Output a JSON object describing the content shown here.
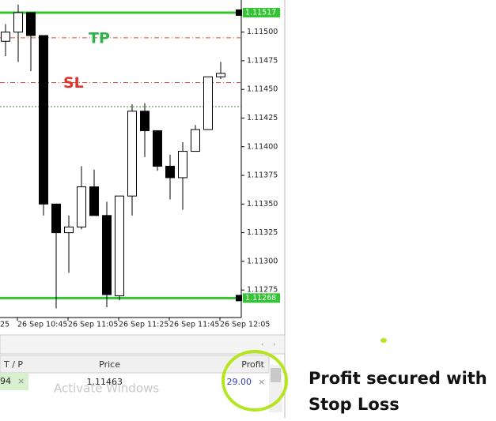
{
  "chart_data": {
    "type": "candlestick",
    "categories": [
      null,
      "26 Sep 10:45",
      null,
      null,
      null,
      "26 Sep 11:05",
      null,
      null,
      null,
      "26 Sep 11:25",
      null,
      null,
      null,
      "26 Sep 11:45",
      null,
      null,
      null,
      "26 Sep 12:05"
    ],
    "clipped_x_label": "25",
    "open": [
      1.11492,
      1.115,
      1.11517,
      1.11497,
      1.1135,
      1.11325,
      1.1133,
      1.11365,
      1.1134,
      1.1127,
      1.11357,
      1.11431,
      1.11414,
      1.11383,
      1.11373,
      1.11396,
      1.11415,
      1.11461
    ],
    "high": [
      1.11507,
      1.11524,
      1.11517,
      1.11497,
      1.1135,
      1.1134,
      1.11383,
      1.1138,
      1.11352,
      1.11357,
      1.11437,
      1.11438,
      1.11414,
      1.11393,
      1.11404,
      1.11419,
      1.11461,
      1.11474
    ],
    "low": [
      1.11479,
      1.11474,
      1.11466,
      1.1134,
      1.11259,
      1.1129,
      1.11328,
      1.1134,
      1.1126,
      1.11266,
      1.1134,
      1.11391,
      1.11379,
      1.11354,
      1.11345,
      1.11396,
      1.11415,
      1.11459
    ],
    "close": [
      1.115,
      1.11517,
      1.11497,
      1.1135,
      1.11325,
      1.1133,
      1.11365,
      1.1134,
      1.11271,
      1.11357,
      1.11431,
      1.11414,
      1.11383,
      1.11373,
      1.11396,
      1.11415,
      1.11461,
      1.11464
    ],
    "ylim": [
      1.11251,
      1.11528
    ],
    "yticks": [
      {
        "value": 1.115,
        "label": "1.11500"
      },
      1.11475,
      {
        "value": 1.1145,
        "label": "1.11450"
      },
      1.11425,
      {
        "value": 1.114,
        "label": "1.11400"
      },
      1.11375,
      {
        "value": 1.1135,
        "label": "1.11350"
      },
      1.11325,
      {
        "value": 1.113,
        "label": "1.11300"
      },
      1.11275
    ],
    "levels": [
      {
        "value": 1.11517,
        "color": "#33c433",
        "style": "solid",
        "price_box": true
      },
      {
        "value": 1.11268,
        "color": "#33c433",
        "style": "solid",
        "price_box": true
      },
      {
        "name": "TP",
        "value": 1.11495,
        "color": "#d9542f",
        "text_color": "#2db34a",
        "style": "dashdot"
      },
      {
        "name": "SL",
        "value": 1.11456,
        "color": "#d9542f",
        "text_color": "#e0332c",
        "style": "dashdot"
      },
      {
        "value": 1.11435,
        "color": "#2e8b2e",
        "style": "dotted"
      }
    ]
  },
  "table": {
    "header": [
      "T / P",
      "Price",
      "Profit"
    ],
    "row": [
      "94",
      "1.11463",
      "29.00"
    ]
  },
  "watermark": "Activate Windows",
  "annotation": [
    "Profit secured with",
    "Stop Loss"
  ]
}
